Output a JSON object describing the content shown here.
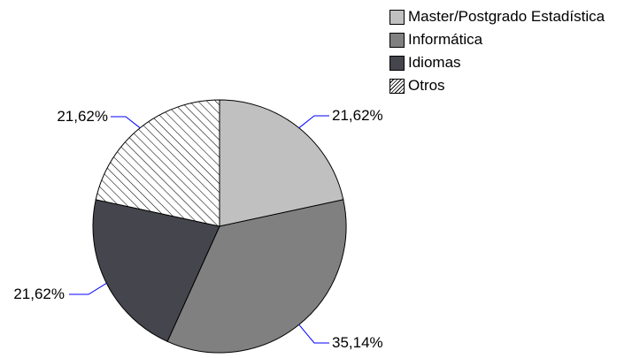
{
  "chart_data": {
    "type": "pie",
    "categories": [
      "Master/Postgrado Estadística",
      "Informática",
      "Idiomas",
      "Otros"
    ],
    "values": [
      21.62,
      35.14,
      21.62,
      21.62
    ],
    "data_labels": [
      "21,62%",
      "35,14%",
      "21,62%",
      "21,62%"
    ],
    "colors": [
      "#c0c0c0",
      "#808080",
      "#45454d",
      "hatch"
    ],
    "leader_line_color": "#0000ff",
    "start_angle": "12 o'clock",
    "direction": "clockwise",
    "legend": {
      "placement": "top-right",
      "items": [
        {
          "label": "Master/Postgrado Estadística",
          "color": "#c0c0c0"
        },
        {
          "label": "Informática",
          "color": "#808080"
        },
        {
          "label": "Idiomas",
          "color": "#45454d"
        },
        {
          "label": "Otros",
          "color": "hatch"
        }
      ]
    }
  }
}
